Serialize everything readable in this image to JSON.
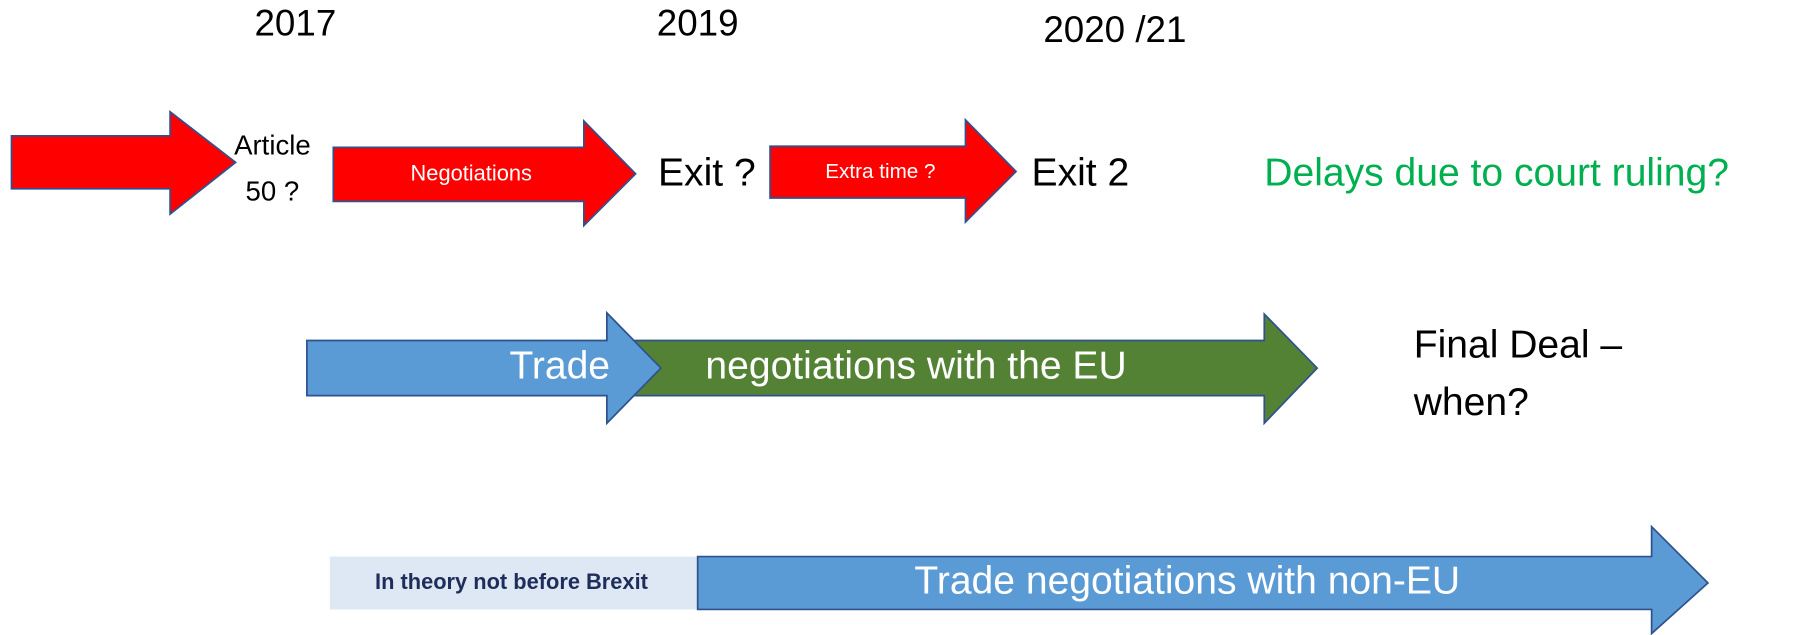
{
  "years": [
    "2017",
    "2019",
    "2020 /21"
  ],
  "top_row": {
    "article": [
      "Article",
      "50 ?"
    ],
    "negotiations": "Negotiations",
    "exit1": "Exit ?",
    "extra_time": "Extra time ?",
    "exit2": "Exit 2",
    "delays": "Delays due to court ruling?"
  },
  "middle_row": {
    "trade": "Trade",
    "eu": "negotiations with the EU",
    "final_deal": [
      "Final Deal –",
      "when?"
    ]
  },
  "bottom_row": {
    "note": "In theory not before Brexit",
    "non_eu": "Trade negotiations with non-EU"
  }
}
